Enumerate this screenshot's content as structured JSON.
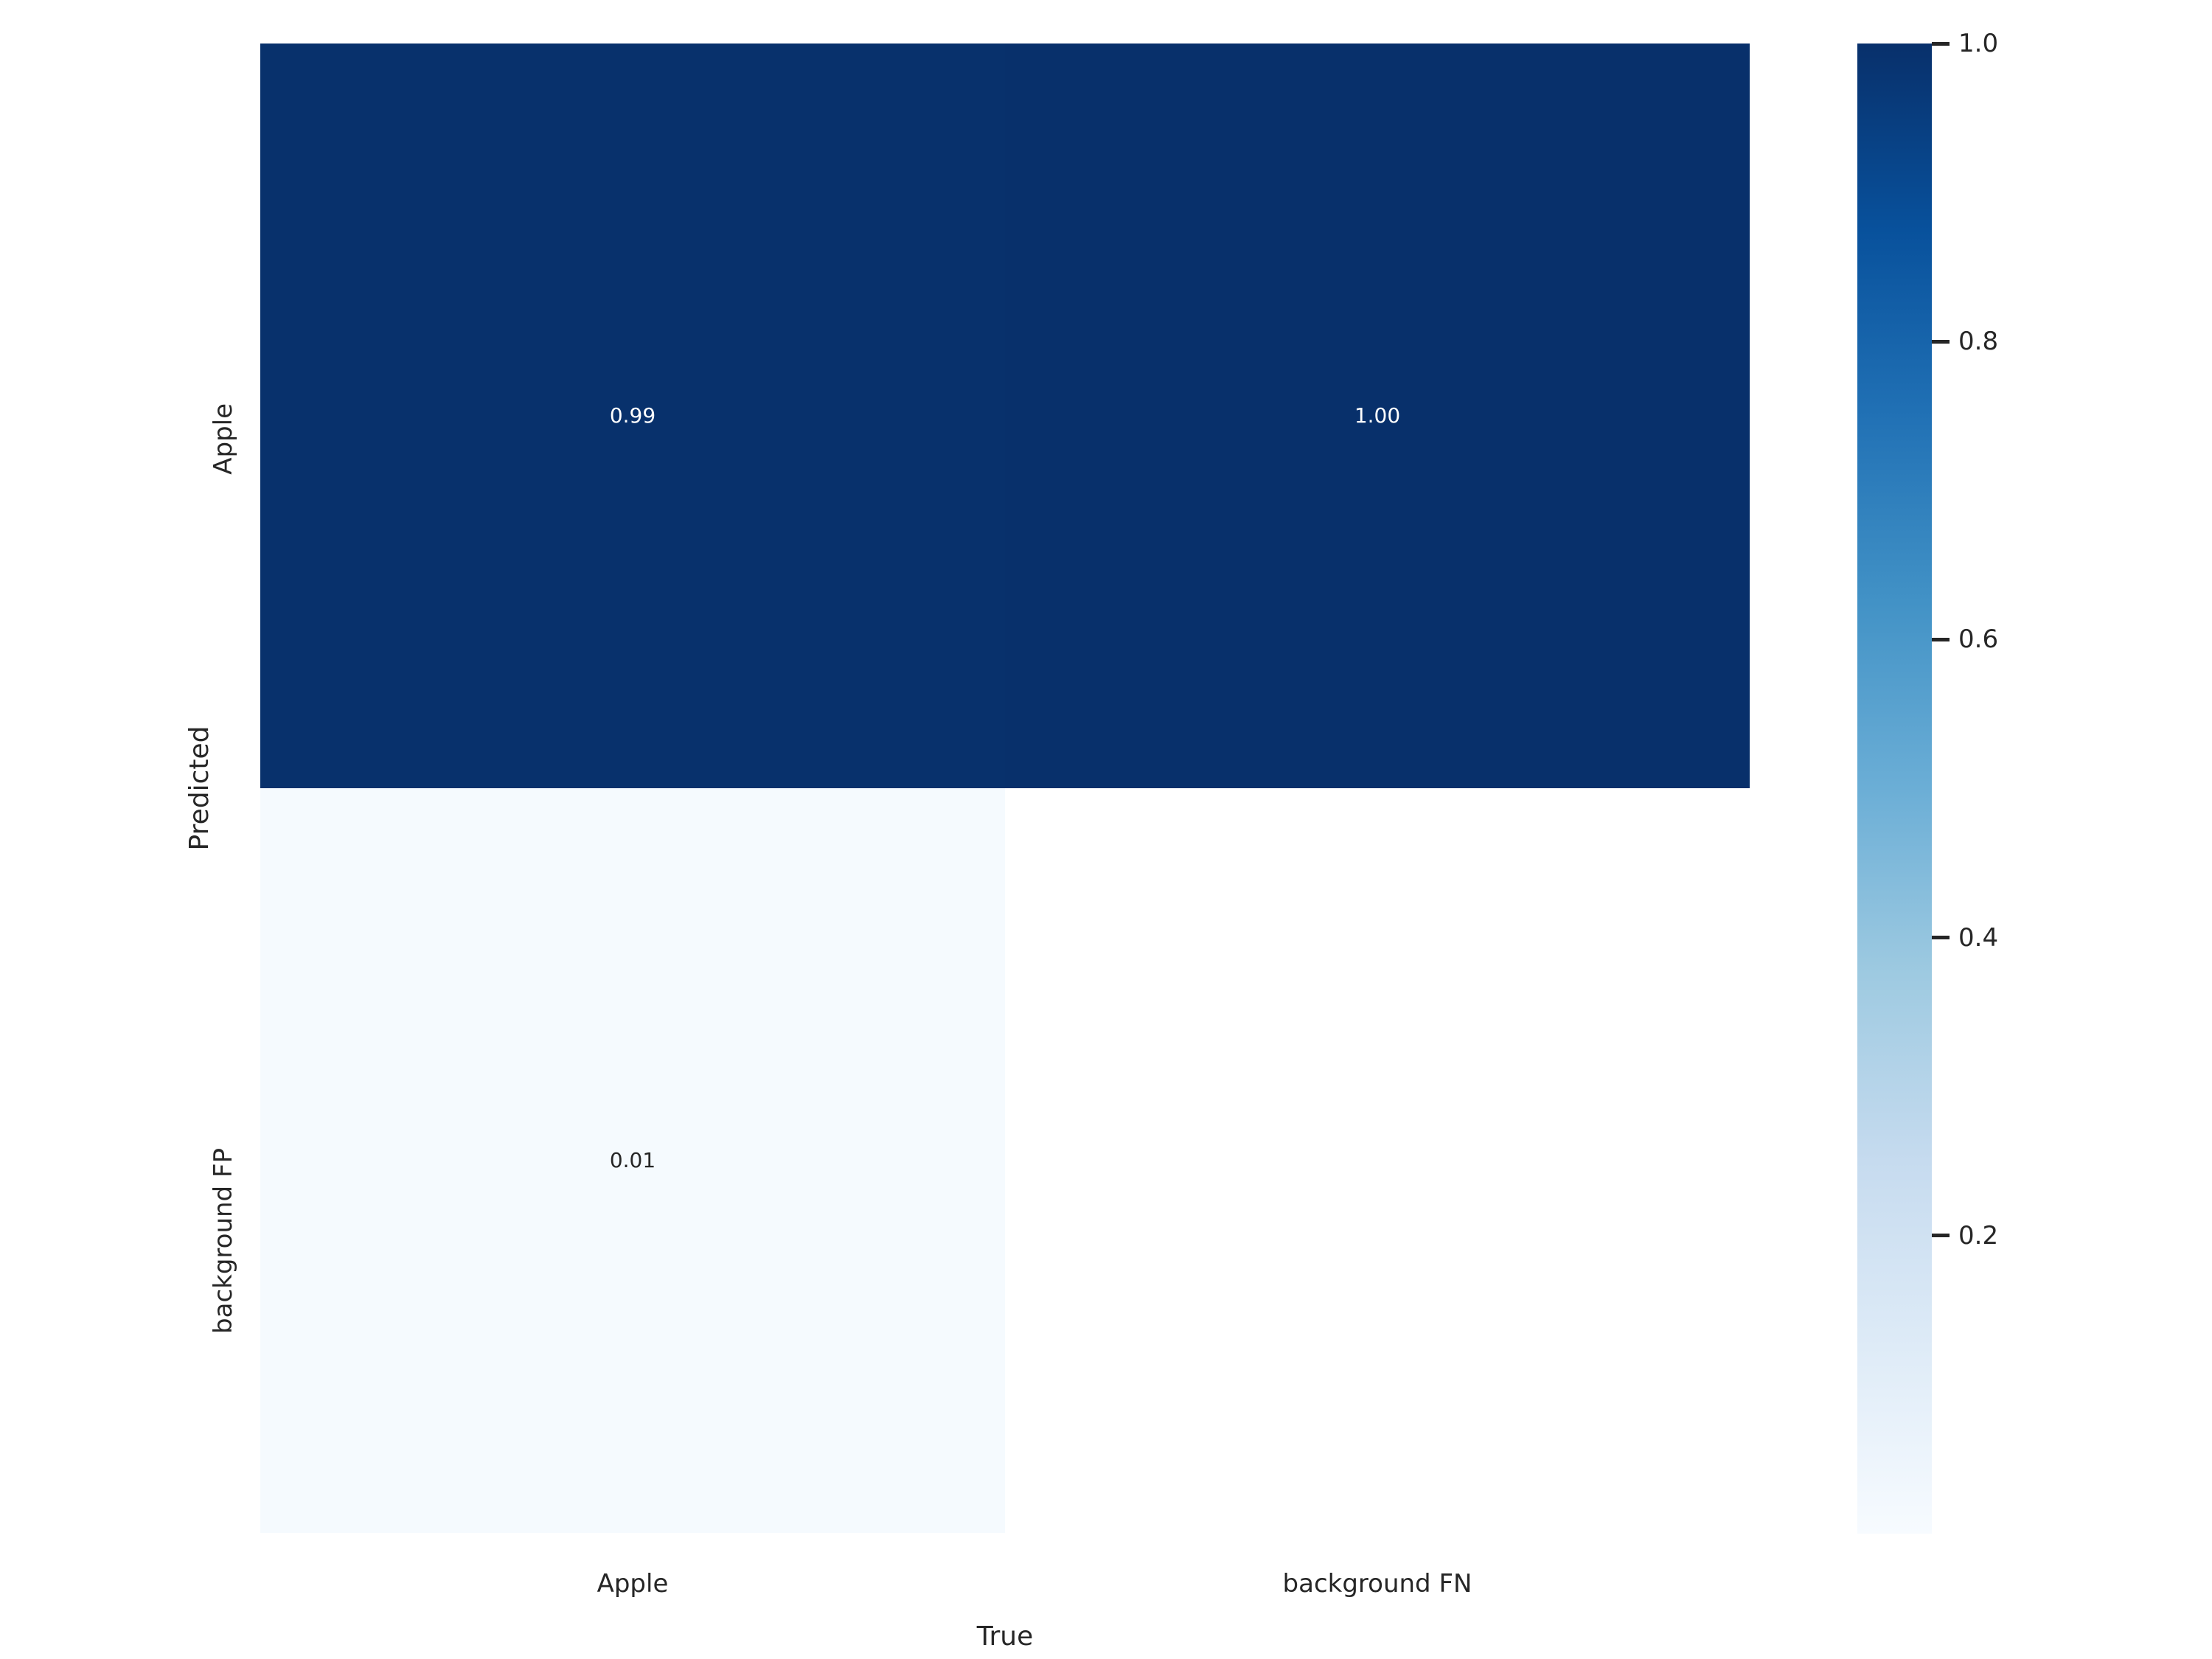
{
  "chart_data": {
    "type": "heatmap",
    "title": "",
    "xlabel": "True",
    "ylabel": "Predicted",
    "columns": [
      "Apple",
      "background FN"
    ],
    "rows": [
      "Apple",
      "background FP"
    ],
    "values": [
      [
        0.99,
        1.0
      ],
      [
        0.01,
        null
      ]
    ],
    "cell_labels": [
      [
        "0.99",
        "1.00"
      ],
      [
        "0.01",
        ""
      ]
    ],
    "cell_colors": [
      [
        "#08316c",
        "#08306b"
      ],
      [
        "#f5fafe",
        "#ffffff"
      ]
    ],
    "cell_text_colors": [
      [
        "#ffffff",
        "#ffffff"
      ],
      [
        "#262626",
        "#262626"
      ]
    ],
    "colormap": "Blues",
    "grid": false,
    "legend": null,
    "colorbar": {
      "vmin": 0.0,
      "vmax": 1.0,
      "ticks": [
        {
          "value": 1.0,
          "label": "1.0"
        },
        {
          "value": 0.8,
          "label": "0.8"
        },
        {
          "value": 0.6,
          "label": "0.6"
        },
        {
          "value": 0.4,
          "label": "0.4"
        },
        {
          "value": 0.2,
          "label": "0.2"
        }
      ],
      "gradient_stops": [
        "#08306b",
        "#08519c",
        "#2171b5",
        "#4292c6",
        "#6baed6",
        "#9ecae1",
        "#c6dbef",
        "#deebf7",
        "#f7fbff"
      ]
    }
  },
  "colors": {
    "text": "#262626",
    "background": "#ffffff"
  }
}
